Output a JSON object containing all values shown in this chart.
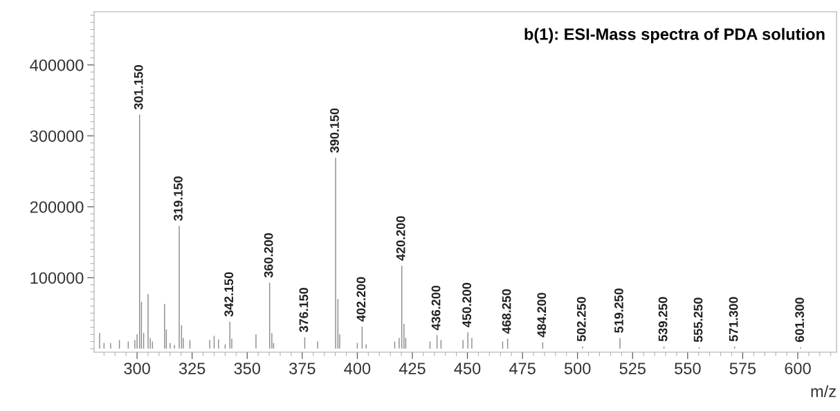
{
  "chart_data": {
    "type": "bar",
    "title": "b(1): ESI-Mass spectra of PDA solution",
    "xlabel": "m/z",
    "x": [
      283,
      285,
      288,
      292,
      296,
      299,
      300,
      301.15,
      302,
      303,
      305,
      306,
      307,
      312.5,
      313.3,
      315,
      317,
      319.15,
      320.2,
      321,
      324,
      333,
      335,
      337,
      340,
      342.15,
      343,
      354,
      360.2,
      361.2,
      362,
      376.15,
      382,
      390.15,
      391.2,
      392,
      400,
      402.2,
      404,
      417,
      419,
      420.2,
      421.2,
      422,
      433,
      436.2,
      438,
      448,
      450.2,
      452,
      466,
      468.25,
      484.2,
      502.25,
      519.25,
      539.25,
      555.25,
      571.3,
      601.3
    ],
    "values": [
      22000,
      8000,
      8000,
      12000,
      10000,
      12000,
      20000,
      330000,
      66000,
      22000,
      77000,
      15000,
      10000,
      63000,
      27000,
      8000,
      5000,
      173000,
      33000,
      15000,
      12000,
      12000,
      18000,
      13000,
      6000,
      38000,
      14000,
      20000,
      93000,
      22000,
      8000,
      16000,
      10000,
      269000,
      70000,
      20000,
      8000,
      31000,
      6000,
      10000,
      15000,
      117000,
      35000,
      15000,
      10000,
      19000,
      12000,
      12000,
      23000,
      15000,
      10000,
      14000,
      9000,
      3000,
      15000,
      3000,
      2000,
      3000,
      2000
    ],
    "annotations": [
      {
        "text": "301.150",
        "x": 301.15,
        "y": 330000
      },
      {
        "text": "319.150",
        "x": 319.15,
        "y": 173000
      },
      {
        "text": "342.150",
        "x": 342.15,
        "y": 38000
      },
      {
        "text": "360.200",
        "x": 360.2,
        "y": 93000
      },
      {
        "text": "376.150",
        "x": 376.15,
        "y": 16000
      },
      {
        "text": "390.150",
        "x": 390.15,
        "y": 269000
      },
      {
        "text": "402.200",
        "x": 402.2,
        "y": 31000
      },
      {
        "text": "420.200",
        "x": 420.2,
        "y": 117000
      },
      {
        "text": "436.200",
        "x": 436.2,
        "y": 19000
      },
      {
        "text": "450.200",
        "x": 450.2,
        "y": 23000
      },
      {
        "text": "468.250",
        "x": 468.25,
        "y": 14000
      },
      {
        "text": "484.200",
        "x": 484.2,
        "y": 9000
      },
      {
        "text": "502.250",
        "x": 502.25,
        "y": 3000
      },
      {
        "text": "519.250",
        "x": 519.25,
        "y": 15000
      },
      {
        "text": "539.250",
        "x": 539.25,
        "y": 3000
      },
      {
        "text": "555.250",
        "x": 555.25,
        "y": 2000
      },
      {
        "text": "571.300",
        "x": 571.3,
        "y": 3000
      },
      {
        "text": "601.300",
        "x": 601.3,
        "y": 2000
      }
    ],
    "color": "#8c8c8c",
    "xlim": [
      280.5,
      617.6
    ],
    "xticks": [
      300,
      325,
      350,
      375,
      400,
      425,
      450,
      475,
      500,
      525,
      550,
      575,
      600
    ],
    "ylim": [
      -5000,
      475000
    ],
    "yticks": [
      100000,
      200000,
      300000,
      400000
    ],
    "grid": false
  }
}
